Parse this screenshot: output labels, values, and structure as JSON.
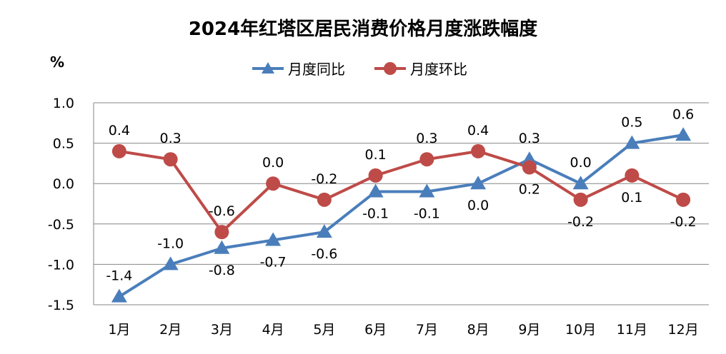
{
  "chart_data": {
    "type": "line",
    "title": "2024年红塔区居民消费价格月度涨跌幅度",
    "ylabel": "%",
    "xlabel": "",
    "categories": [
      "1月",
      "2月",
      "3月",
      "4月",
      "5月",
      "6月",
      "7月",
      "8月",
      "9月",
      "10月",
      "11月",
      "12月"
    ],
    "ylim": [
      -1.5,
      1.0
    ],
    "yticks": [
      "1.0",
      "0.5",
      "0.0",
      "-0.5",
      "-1.0",
      "-1.5"
    ],
    "grid": true,
    "legend_position": "top",
    "series": [
      {
        "name": "月度同比",
        "color": "#4a7ebb",
        "marker": "triangle",
        "values": [
          -1.4,
          -1.0,
          -0.8,
          -0.7,
          -0.6,
          -0.1,
          -0.1,
          0.0,
          0.3,
          0.0,
          0.5,
          0.6
        ]
      },
      {
        "name": "月度环比",
        "color": "#be4b48",
        "marker": "circle",
        "values": [
          0.4,
          0.3,
          -0.6,
          0.0,
          -0.2,
          0.1,
          0.3,
          0.4,
          0.2,
          -0.2,
          0.1,
          -0.2
        ]
      }
    ]
  }
}
